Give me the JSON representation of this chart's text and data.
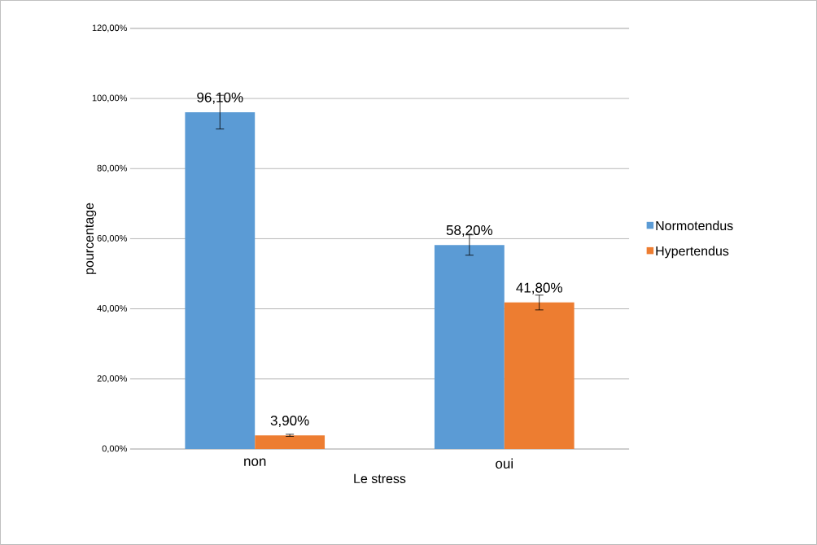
{
  "chart_data": {
    "type": "bar",
    "xlabel": "Le stress",
    "ylabel": "pourcentage",
    "categories": [
      "non",
      "oui"
    ],
    "series": [
      {
        "name": "Normotendus",
        "color": "#5b9bd5",
        "values": [
          96.1,
          58.2
        ],
        "errors": [
          4.8,
          2.9
        ],
        "value_labels": [
          "96,10%",
          "58,20%"
        ]
      },
      {
        "name": "Hypertendus",
        "color": "#ed7d31",
        "values": [
          3.9,
          41.8
        ],
        "errors": [
          0.3,
          2.1
        ],
        "value_labels": [
          "3,90%",
          "41,80%"
        ]
      }
    ],
    "ylim": [
      0,
      120
    ],
    "yticks": [
      {
        "value": 0,
        "label": "0,00%"
      },
      {
        "value": 20,
        "label": "20,00%"
      },
      {
        "value": 40,
        "label": "40,00%"
      },
      {
        "value": 60,
        "label": "60,00%"
      },
      {
        "value": 80,
        "label": "80,00%"
      },
      {
        "value": 100,
        "label": "100,00%"
      },
      {
        "value": 120,
        "label": "120,00%"
      }
    ],
    "grid": "y",
    "legend": "right"
  }
}
